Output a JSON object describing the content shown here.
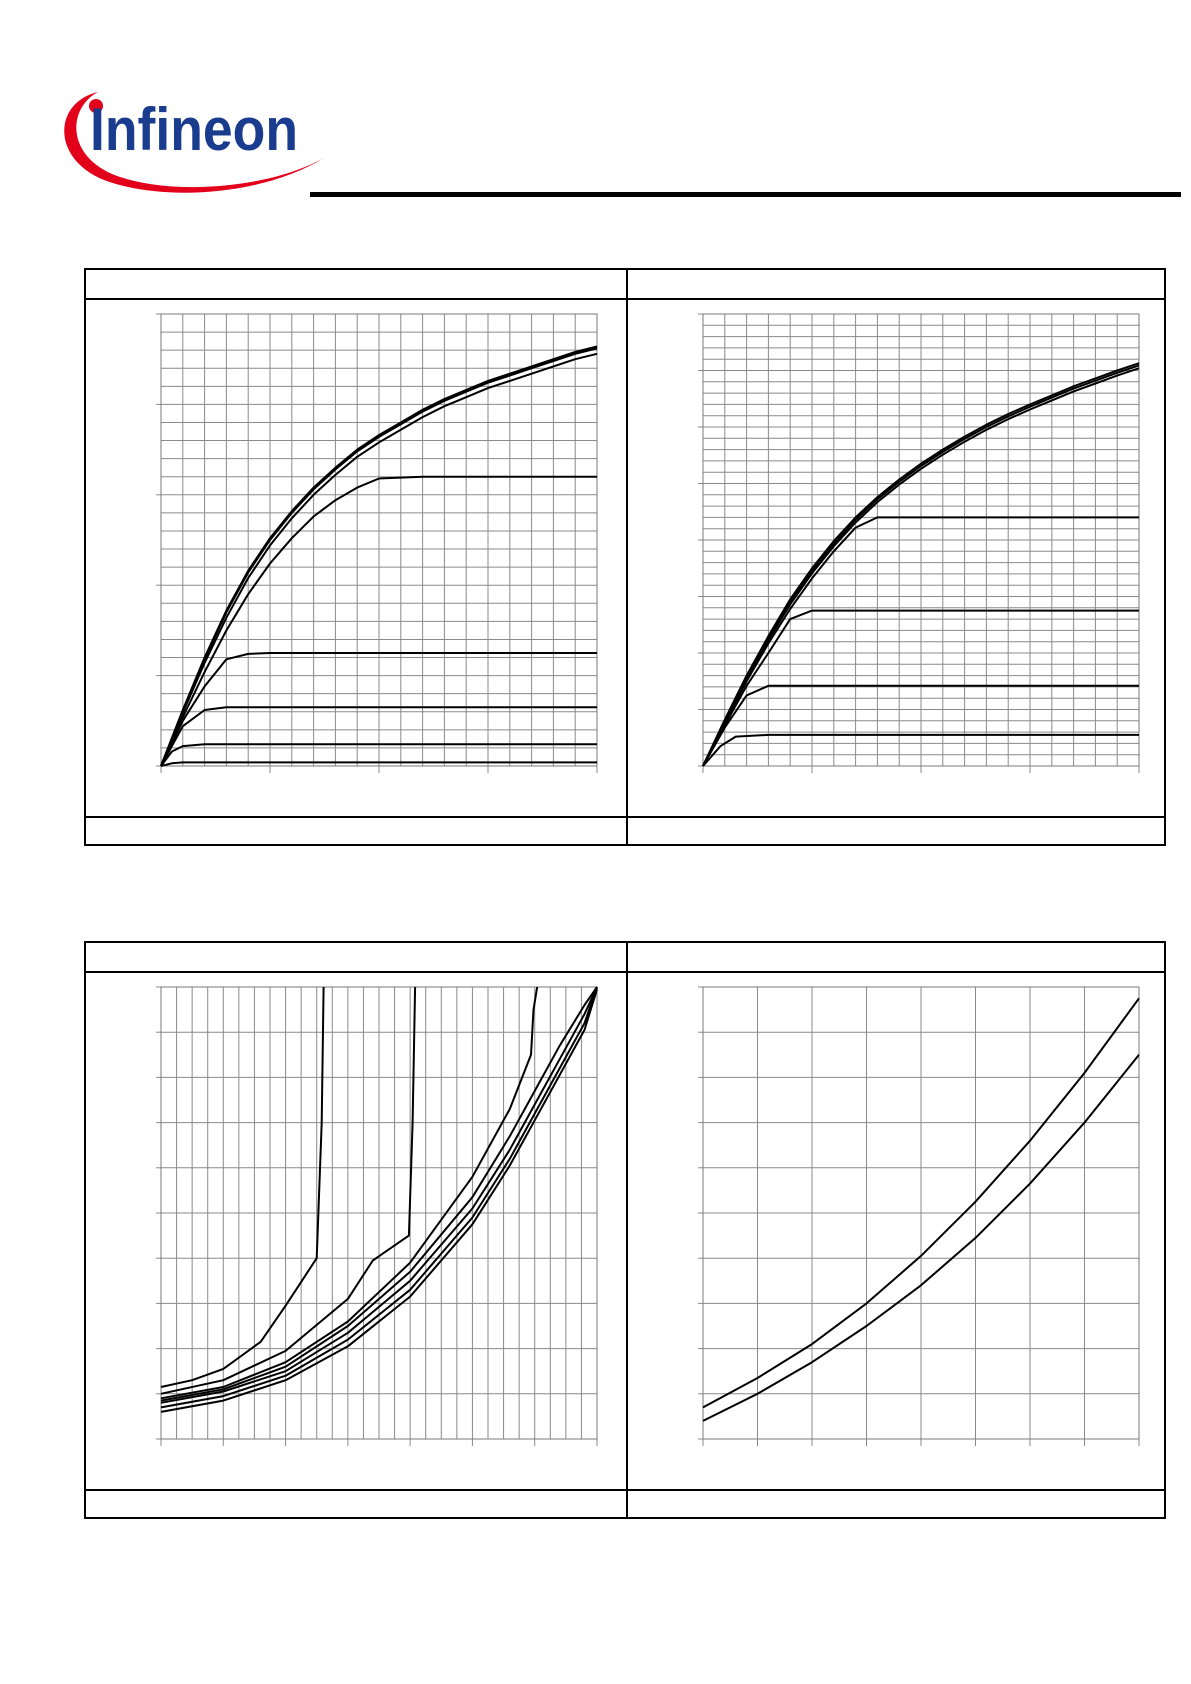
{
  "logo": {
    "text": "Infineon",
    "swoosh_color": "#e2001a",
    "text_color": "#1a3c8f"
  },
  "panels": [
    {
      "header": "",
      "footer": ""
    },
    {
      "header": "",
      "footer": ""
    },
    {
      "header": "",
      "footer": ""
    },
    {
      "header": "",
      "footer": ""
    }
  ],
  "chart_data": [
    {
      "type": "line",
      "title": "",
      "xlabel": "",
      "ylabel": "",
      "xlim": [
        0,
        20
      ],
      "ylim": [
        0,
        25
      ],
      "grid": true,
      "series": [
        {
          "x": [
            0,
            1,
            2,
            3,
            4,
            5,
            6,
            7,
            8,
            9,
            10,
            11,
            12,
            13,
            14,
            15,
            16,
            17,
            18,
            19,
            20
          ],
          "y": [
            0,
            3.1,
            6,
            8.6,
            10.8,
            12.6,
            14.1,
            15.4,
            16.5,
            17.5,
            18.3,
            19,
            19.7,
            20.3,
            20.8,
            21.3,
            21.7,
            22.1,
            22.5,
            22.9,
            23.2
          ]
        },
        {
          "x": [
            0,
            1,
            2,
            3,
            4,
            5,
            6,
            7,
            8,
            9,
            10,
            11,
            12,
            13,
            14,
            15,
            16,
            17,
            18,
            19,
            20
          ],
          "y": [
            0,
            3.05,
            5.9,
            8.5,
            10.7,
            12.5,
            14,
            15.3,
            16.4,
            17.4,
            18.2,
            18.9,
            19.6,
            20.2,
            20.7,
            21.2,
            21.6,
            22,
            22.4,
            22.8,
            23.1
          ]
        },
        {
          "x": [
            0,
            1,
            2,
            3,
            4,
            5,
            6,
            7,
            8,
            9,
            10,
            11,
            12,
            13,
            14,
            15,
            16,
            17,
            18,
            19,
            20
          ],
          "y": [
            0,
            2.95,
            5.7,
            8.2,
            10.4,
            12.2,
            13.7,
            15,
            16.1,
            17.1,
            17.9,
            18.6,
            19.3,
            19.9,
            20.4,
            20.9,
            21.3,
            21.7,
            22.1,
            22.5,
            22.8
          ]
        },
        {
          "x": [
            0,
            1,
            2,
            3,
            4,
            5,
            6,
            7,
            8,
            9,
            10,
            11,
            12,
            13,
            14,
            15,
            16,
            17,
            18,
            19,
            20
          ],
          "y": [
            0,
            2.7,
            5.2,
            7.5,
            9.5,
            11.2,
            12.6,
            13.8,
            14.7,
            15.4,
            15.9,
            15.95,
            16,
            16,
            16,
            16,
            16,
            16,
            16,
            16,
            16
          ]
        },
        {
          "x": [
            0,
            1,
            2,
            3,
            4,
            5,
            6,
            7,
            8,
            9,
            10,
            11,
            12,
            13,
            14,
            15,
            16,
            17,
            18,
            19,
            20
          ],
          "y": [
            0,
            2.5,
            4.4,
            5.9,
            6.2,
            6.25,
            6.25,
            6.25,
            6.25,
            6.25,
            6.25,
            6.25,
            6.25,
            6.25,
            6.25,
            6.25,
            6.25,
            6.25,
            6.25,
            6.25,
            6.25
          ]
        },
        {
          "x": [
            0,
            1,
            2,
            3,
            4,
            5,
            6,
            7,
            8,
            9,
            10,
            11,
            12,
            13,
            14,
            15,
            16,
            17,
            18,
            19,
            20
          ],
          "y": [
            0,
            2.2,
            3.1,
            3.25,
            3.25,
            3.25,
            3.25,
            3.25,
            3.25,
            3.25,
            3.25,
            3.25,
            3.25,
            3.25,
            3.25,
            3.25,
            3.25,
            3.25,
            3.25,
            3.25,
            3.25
          ]
        },
        {
          "x": [
            0,
            0.5,
            1,
            2,
            3,
            4,
            5,
            6,
            7,
            8,
            9,
            10,
            11,
            12,
            13,
            14,
            15,
            16,
            17,
            18,
            19,
            20
          ],
          "y": [
            0,
            0.8,
            1.1,
            1.2,
            1.2,
            1.2,
            1.2,
            1.2,
            1.2,
            1.2,
            1.2,
            1.2,
            1.2,
            1.2,
            1.2,
            1.2,
            1.2,
            1.2,
            1.2,
            1.2,
            1.2,
            1.2
          ]
        },
        {
          "x": [
            0,
            0.5,
            1,
            2,
            3,
            4,
            5,
            6,
            7,
            8,
            9,
            10,
            11,
            12,
            13,
            14,
            15,
            16,
            17,
            18,
            19,
            20
          ],
          "y": [
            0,
            0.15,
            0.2,
            0.2,
            0.2,
            0.2,
            0.2,
            0.2,
            0.2,
            0.2,
            0.2,
            0.2,
            0.2,
            0.2,
            0.2,
            0.2,
            0.2,
            0.2,
            0.2,
            0.2,
            0.2,
            0.2
          ]
        }
      ]
    },
    {
      "type": "line",
      "title": "",
      "xlabel": "",
      "ylabel": "",
      "xlim": [
        0,
        20
      ],
      "ylim": [
        0,
        8
      ],
      "grid": true,
      "series": [
        {
          "x": [
            0,
            1,
            2,
            3,
            4,
            5,
            6,
            7,
            8,
            9,
            10,
            11,
            12,
            13,
            14,
            15,
            16,
            17,
            18,
            19,
            20
          ],
          "y": [
            0,
            0.82,
            1.6,
            2.3,
            2.95,
            3.5,
            3.98,
            4.4,
            4.76,
            5.07,
            5.35,
            5.6,
            5.83,
            6.04,
            6.23,
            6.4,
            6.56,
            6.72,
            6.86,
            7,
            7.13
          ]
        },
        {
          "x": [
            0,
            1,
            2,
            3,
            4,
            5,
            6,
            7,
            8,
            9,
            10,
            11,
            12,
            13,
            14,
            15,
            16,
            17,
            18,
            19,
            20
          ],
          "y": [
            0,
            0.8,
            1.58,
            2.27,
            2.91,
            3.46,
            3.94,
            4.36,
            4.72,
            5.03,
            5.31,
            5.56,
            5.79,
            6,
            6.19,
            6.36,
            6.52,
            6.68,
            6.82,
            6.96,
            7.09
          ]
        },
        {
          "x": [
            0,
            1,
            2,
            3,
            4,
            5,
            6,
            7,
            8,
            9,
            10,
            11,
            12,
            13,
            14,
            15,
            16,
            17,
            18,
            19,
            20
          ],
          "y": [
            0,
            0.78,
            1.55,
            2.23,
            2.86,
            3.41,
            3.89,
            4.31,
            4.67,
            4.98,
            5.26,
            5.51,
            5.74,
            5.95,
            6.14,
            6.31,
            6.47,
            6.63,
            6.77,
            6.91,
            7.04
          ]
        },
        {
          "x": [
            0,
            1,
            2,
            3,
            4,
            5,
            6,
            7,
            8,
            9,
            10,
            11,
            12,
            13,
            14,
            15,
            16,
            17,
            18,
            19,
            20
          ],
          "y": [
            0,
            0.76,
            1.5,
            2.17,
            2.78,
            3.32,
            3.8,
            4.22,
            4.4,
            4.4,
            4.4,
            4.4,
            4.4,
            4.4,
            4.4,
            4.4,
            4.4,
            4.4,
            4.4,
            4.4,
            4.4
          ]
        },
        {
          "x": [
            0,
            1,
            2,
            3,
            4,
            5,
            6,
            7,
            8,
            9,
            10,
            11,
            12,
            13,
            14,
            15,
            16,
            17,
            18,
            19,
            20
          ],
          "y": [
            0,
            0.72,
            1.42,
            2,
            2.6,
            2.75,
            2.75,
            2.75,
            2.75,
            2.75,
            2.75,
            2.75,
            2.75,
            2.75,
            2.75,
            2.75,
            2.75,
            2.75,
            2.75,
            2.75,
            2.75
          ]
        },
        {
          "x": [
            0,
            1,
            2,
            3,
            4,
            5,
            6,
            7,
            8,
            9,
            10,
            11,
            12,
            13,
            14,
            15,
            16,
            17,
            18,
            19,
            20
          ],
          "y": [
            0,
            0.68,
            1.25,
            1.42,
            1.42,
            1.42,
            1.42,
            1.42,
            1.42,
            1.42,
            1.42,
            1.42,
            1.42,
            1.42,
            1.42,
            1.42,
            1.42,
            1.42,
            1.42,
            1.42,
            1.42
          ]
        },
        {
          "x": [
            0,
            0.8,
            1.5,
            3,
            4,
            5,
            6,
            7,
            8,
            9,
            10,
            11,
            12,
            13,
            14,
            15,
            16,
            17,
            18,
            19,
            20
          ],
          "y": [
            0,
            0.35,
            0.52,
            0.55,
            0.55,
            0.55,
            0.55,
            0.55,
            0.55,
            0.55,
            0.55,
            0.55,
            0.55,
            0.55,
            0.55,
            0.55,
            0.55,
            0.55,
            0.55,
            0.55,
            0.55
          ]
        }
      ]
    },
    {
      "type": "line",
      "title": "",
      "xlabel": "",
      "ylabel": "",
      "xlim": [
        0,
        35
      ],
      "ylim": [
        0,
        10
      ],
      "grid": true,
      "series": [
        {
          "x": [
            0,
            2.5,
            5,
            8,
            10,
            12.5,
            12.9,
            13.05
          ],
          "y": [
            1.15,
            1.3,
            1.55,
            2.15,
            2.95,
            4,
            7,
            10
          ]
        },
        {
          "x": [
            0,
            5,
            10,
            15,
            17,
            19.9,
            20.2,
            20.4
          ],
          "y": [
            1.0,
            1.3,
            1.95,
            3.1,
            3.95,
            4.5,
            7,
            10
          ]
        },
        {
          "x": [
            0,
            5,
            10,
            15,
            20,
            25,
            28,
            29.7,
            29.9,
            30.2
          ],
          "y": [
            0.9,
            1.15,
            1.7,
            2.6,
            3.9,
            5.8,
            7.3,
            8.5,
            9.5,
            10
          ]
        },
        {
          "x": [
            0,
            5,
            10,
            15,
            20,
            25,
            28,
            30,
            32,
            34,
            35
          ],
          "y": [
            0.85,
            1.1,
            1.6,
            2.5,
            3.7,
            5.35,
            6.7,
            7.7,
            8.7,
            9.6,
            10
          ]
        },
        {
          "x": [
            0,
            5,
            10,
            15,
            20,
            25,
            28,
            30,
            32,
            34,
            35
          ],
          "y": [
            0.8,
            1.05,
            1.5,
            2.35,
            3.5,
            5.1,
            6.4,
            7.4,
            8.4,
            9.4,
            10
          ]
        },
        {
          "x": [
            0,
            5,
            10,
            15,
            20,
            25,
            28,
            30,
            32,
            34,
            35
          ],
          "y": [
            0.7,
            0.95,
            1.4,
            2.2,
            3.3,
            4.9,
            6.2,
            7.2,
            8.2,
            9.2,
            10
          ]
        },
        {
          "x": [
            0,
            5,
            10,
            15,
            20,
            25,
            28,
            30,
            32,
            34,
            35
          ],
          "y": [
            0.6,
            0.85,
            1.3,
            2.05,
            3.15,
            4.75,
            6.05,
            7.05,
            8.05,
            9.05,
            9.95
          ]
        }
      ]
    },
    {
      "type": "line",
      "title": "",
      "xlabel": "",
      "ylabel": "",
      "xlim": [
        0,
        8
      ],
      "ylim": [
        0,
        10
      ],
      "grid": true,
      "series": [
        {
          "x": [
            0,
            1,
            2,
            3,
            4,
            5,
            6,
            7,
            8
          ],
          "y": [
            0.7,
            1.35,
            2.1,
            3.0,
            4.05,
            5.25,
            6.6,
            8.1,
            9.75
          ]
        },
        {
          "x": [
            0,
            1,
            2,
            3,
            4,
            5,
            6,
            7,
            8
          ],
          "y": [
            0.4,
            1.0,
            1.7,
            2.5,
            3.4,
            4.45,
            5.65,
            7.0,
            8.5
          ]
        }
      ]
    }
  ]
}
